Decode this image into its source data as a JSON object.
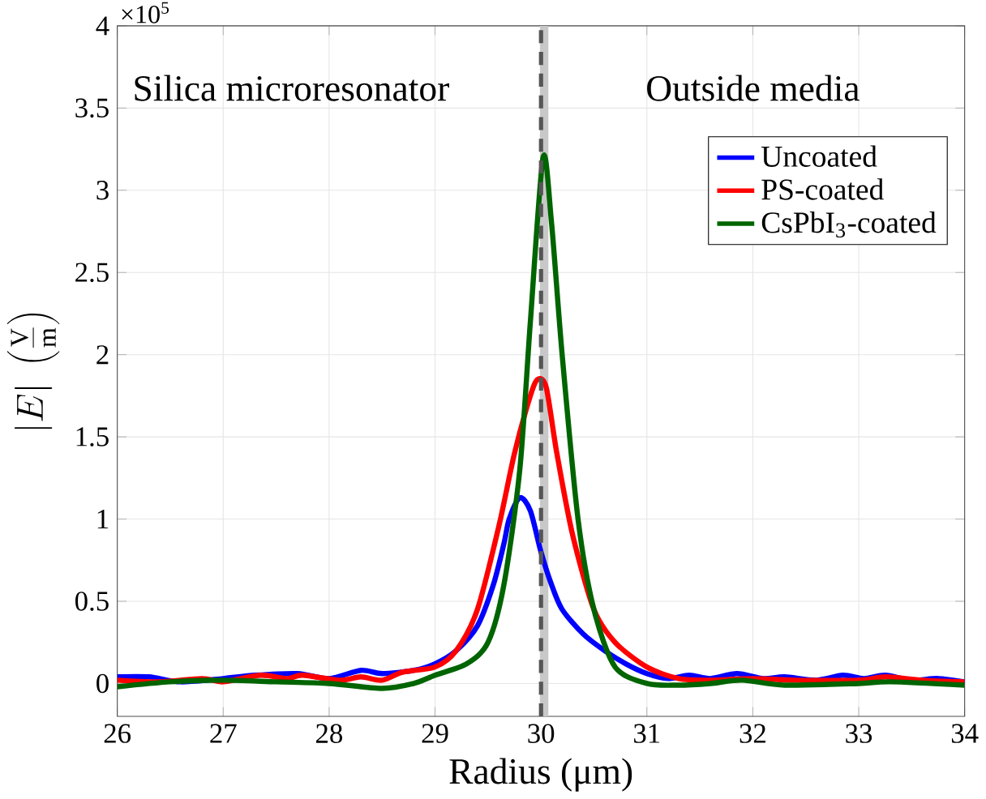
{
  "chart_data": {
    "type": "line",
    "xlabel": "Radius (μm)",
    "ylabel": "|E|\\;\\left(\\frac{\\mathrm{V}}{\\mathrm{m}}\\right)",
    "xlim": [
      26,
      34
    ],
    "ylim": [
      -0.2,
      4
    ],
    "xticks": [
      26,
      27,
      28,
      29,
      30,
      31,
      32,
      33,
      34
    ],
    "yticks": [
      0,
      0.5,
      1,
      1.5,
      2,
      2.5,
      3,
      3.5,
      4
    ],
    "grid": true,
    "legend": "top right",
    "line_style": "solid",
    "marker": "none",
    "annotations": [
      "Silica microresonator",
      "Outside media",
      "×10$^{5}$"
    ],
    "bands": [
      {
        "axis": "x",
        "from": 29.99,
        "to": 30.07,
        "color": "#c8c8c8"
      }
    ],
    "ref_lines": [
      {
        "axis": "x",
        "value": 30,
        "color": "#555555",
        "line_style": "dashed"
      }
    ],
    "series": [
      {
        "name": "Uncoated",
        "color": "#0000ff",
        "x": [
          26,
          26.3,
          26.6,
          27,
          27.3,
          27.7,
          28,
          28.3,
          28.5,
          28.8,
          29,
          29.2,
          29.4,
          29.55,
          29.65,
          29.7,
          29.8,
          29.9,
          30,
          30.1,
          30.2,
          30.4,
          30.6,
          30.8,
          31,
          31.2,
          31.4,
          31.6,
          31.85,
          32.1,
          32.3,
          32.6,
          32.85,
          33.05,
          33.25,
          33.5,
          33.75,
          34
        ],
        "values": [
          0.04,
          0.04,
          0.01,
          0.03,
          0.05,
          0.06,
          0.03,
          0.08,
          0.06,
          0.08,
          0.12,
          0.2,
          0.35,
          0.6,
          0.85,
          1.0,
          1.13,
          1.05,
          0.8,
          0.6,
          0.45,
          0.3,
          0.2,
          0.12,
          0.06,
          0.03,
          0.05,
          0.03,
          0.06,
          0.03,
          0.04,
          0.02,
          0.05,
          0.03,
          0.05,
          0.02,
          0.03,
          0.01
        ]
      },
      {
        "name": "PS-coated",
        "color": "#ff0000",
        "x": [
          26,
          26.4,
          26.8,
          27,
          27.35,
          27.6,
          27.75,
          28.1,
          28.3,
          28.5,
          28.7,
          29,
          29.2,
          29.4,
          29.6,
          29.75,
          29.9,
          29.97,
          30.05,
          30.15,
          30.3,
          30.5,
          30.7,
          31,
          31.3,
          31.6,
          32,
          32.4,
          33,
          33.25,
          33.6,
          34
        ],
        "values": [
          0.02,
          0.01,
          0.03,
          0.01,
          0.05,
          0.03,
          0.05,
          0.02,
          0.04,
          0.02,
          0.07,
          0.1,
          0.2,
          0.45,
          0.95,
          1.4,
          1.75,
          1.85,
          1.8,
          1.4,
          0.9,
          0.45,
          0.25,
          0.1,
          0.03,
          0.02,
          0.03,
          0.02,
          0.02,
          0.04,
          0.02,
          0.01
        ]
      },
      {
        "name": "CsPbI$_{3}$-coated",
        "color": "#006400",
        "x": [
          26,
          26.5,
          27,
          27.5,
          28,
          28.5,
          28.8,
          29,
          29.3,
          29.5,
          29.65,
          29.8,
          29.9,
          30.02,
          30.1,
          30.2,
          30.35,
          30.5,
          30.7,
          31,
          31.3,
          31.6,
          31.9,
          32.3,
          33,
          33.3,
          34
        ],
        "values": [
          -0.02,
          0.01,
          0.02,
          0.01,
          0.0,
          -0.03,
          0.0,
          0.05,
          0.12,
          0.25,
          0.6,
          1.3,
          2.2,
          3.2,
          2.8,
          2.0,
          1.0,
          0.45,
          0.1,
          0.0,
          -0.01,
          0.0,
          0.02,
          -0.01,
          0.0,
          0.01,
          -0.01
        ]
      }
    ]
  }
}
